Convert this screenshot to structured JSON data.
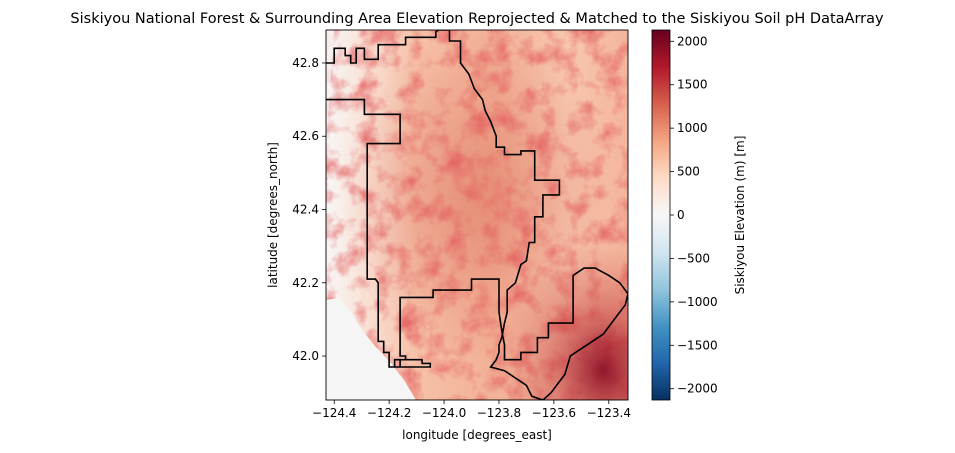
{
  "chart_data": {
    "type": "heatmap",
    "title": "Siskiyou National Forest & Surrounding Area Elevation Reprojected & Matched to the Siskiyou Soil pH DataArray",
    "xlabel": "longitude [degrees_east]",
    "ylabel": "latitude [degrees_north]",
    "xlim": [
      -124.43,
      -123.33
    ],
    "ylim": [
      41.88,
      42.89
    ],
    "x_ticks": [
      {
        "value": -124.4,
        "label": "−124.4"
      },
      {
        "value": -124.2,
        "label": "−124.2"
      },
      {
        "value": -124.0,
        "label": "−124.0"
      },
      {
        "value": -123.8,
        "label": "−123.8"
      },
      {
        "value": -123.6,
        "label": "−123.6"
      },
      {
        "value": -123.4,
        "label": "−123.4"
      }
    ],
    "y_ticks": [
      {
        "value": 42.0,
        "label": "42.0"
      },
      {
        "value": 42.2,
        "label": "42.2"
      },
      {
        "value": 42.4,
        "label": "42.4"
      },
      {
        "value": 42.6,
        "label": "42.6"
      },
      {
        "value": 42.8,
        "label": "42.8"
      }
    ],
    "colorbar": {
      "label": "Siskiyou Elevation (m) [m]",
      "colormap": "RdBu_r",
      "range": [
        -2130,
        2130
      ],
      "ticks": [
        {
          "value": 2000,
          "label": "2000"
        },
        {
          "value": 1500,
          "label": "1500"
        },
        {
          "value": 1000,
          "label": "1000"
        },
        {
          "value": 500,
          "label": "500"
        },
        {
          "value": 0,
          "label": "0"
        },
        {
          "value": -500,
          "label": "−500"
        },
        {
          "value": -1000,
          "label": "−1000"
        },
        {
          "value": -1500,
          "label": "−1500"
        },
        {
          "value": -2000,
          "label": "−2000"
        }
      ],
      "colors": [
        "#053061",
        "#2166ac",
        "#4393c3",
        "#92c5de",
        "#d1e5f0",
        "#f7f7f7",
        "#fddbc7",
        "#f4a582",
        "#d6604d",
        "#b2182b",
        "#67001f"
      ]
    },
    "boundary_color": "#000000",
    "boundary": [
      [
        -124.43,
        42.8
      ],
      [
        -124.4,
        42.8
      ],
      [
        -124.4,
        42.84
      ],
      [
        -124.36,
        42.84
      ],
      [
        -124.36,
        42.82
      ],
      [
        -124.34,
        42.82
      ],
      [
        -124.34,
        42.8
      ],
      [
        -124.32,
        42.8
      ],
      [
        -124.32,
        42.84
      ],
      [
        -124.29,
        42.84
      ],
      [
        -124.29,
        42.81
      ],
      [
        -124.24,
        42.81
      ],
      [
        -124.24,
        42.85
      ],
      [
        -124.14,
        42.85
      ],
      [
        -124.14,
        42.87
      ],
      [
        -124.03,
        42.87
      ],
      [
        -124.03,
        42.885
      ],
      [
        -124.02,
        42.89
      ],
      [
        -123.98,
        42.89
      ],
      [
        -123.98,
        42.86
      ],
      [
        -123.94,
        42.86
      ],
      [
        -123.94,
        42.8
      ],
      [
        -123.91,
        42.77
      ],
      [
        -123.89,
        42.73
      ],
      [
        -123.86,
        42.7
      ],
      [
        -123.85,
        42.67
      ],
      [
        -123.83,
        42.64
      ],
      [
        -123.81,
        42.6
      ],
      [
        -123.81,
        42.57
      ],
      [
        -123.78,
        42.57
      ],
      [
        -123.78,
        42.55
      ],
      [
        -123.72,
        42.55
      ],
      [
        -123.72,
        42.56
      ],
      [
        -123.67,
        42.56
      ],
      [
        -123.67,
        42.48
      ],
      [
        -123.58,
        42.48
      ],
      [
        -123.58,
        42.44
      ],
      [
        -123.64,
        42.44
      ],
      [
        -123.64,
        42.38
      ],
      [
        -123.67,
        42.38
      ],
      [
        -123.67,
        42.31
      ],
      [
        -123.69,
        42.31
      ],
      [
        -123.7,
        42.26
      ],
      [
        -123.72,
        42.25
      ],
      [
        -123.74,
        42.2
      ],
      [
        -123.77,
        42.18
      ],
      [
        -123.77,
        42.12
      ],
      [
        -123.78,
        42.09
      ],
      [
        -123.79,
        42.05
      ],
      [
        -123.8,
        42.03
      ],
      [
        -123.8,
        42.01
      ],
      [
        -123.81,
        41.99
      ],
      [
        -123.83,
        41.97
      ],
      [
        -123.78,
        41.96
      ],
      [
        -123.74,
        41.94
      ],
      [
        -123.7,
        41.92
      ],
      [
        -123.68,
        41.89
      ],
      [
        -123.64,
        41.88
      ],
      [
        -123.61,
        41.9
      ],
      [
        -123.59,
        41.92
      ],
      [
        -123.56,
        41.95
      ],
      [
        -123.54,
        42.0
      ],
      [
        -123.5,
        42.02
      ],
      [
        -123.46,
        42.04
      ],
      [
        -123.42,
        42.06
      ],
      [
        -123.38,
        42.1
      ],
      [
        -123.34,
        42.14
      ],
      [
        -123.33,
        42.17
      ],
      [
        -123.36,
        42.2
      ],
      [
        -123.4,
        42.22
      ],
      [
        -123.45,
        42.24
      ],
      [
        -123.49,
        42.24
      ],
      [
        -123.53,
        42.22
      ],
      [
        -123.53,
        42.09
      ],
      [
        -123.62,
        42.09
      ],
      [
        -123.62,
        42.05
      ],
      [
        -123.66,
        42.05
      ],
      [
        -123.66,
        42.01
      ],
      [
        -123.72,
        42.01
      ],
      [
        -123.72,
        41.99
      ],
      [
        -123.78,
        41.99
      ],
      [
        -123.78,
        42.03
      ],
      [
        -123.79,
        42.07
      ],
      [
        -123.8,
        42.12
      ],
      [
        -123.8,
        42.21
      ],
      [
        -123.9,
        42.21
      ],
      [
        -123.9,
        42.18
      ],
      [
        -124.04,
        42.18
      ],
      [
        -124.04,
        42.16
      ],
      [
        -124.16,
        42.16
      ],
      [
        -124.16,
        42.12
      ],
      [
        -124.16,
        42.08
      ],
      [
        -124.16,
        42.0
      ],
      [
        -124.14,
        42.0
      ],
      [
        -124.14,
        41.99
      ],
      [
        -124.16,
        41.99
      ],
      [
        -124.16,
        41.97
      ],
      [
        -124.18,
        41.97
      ],
      [
        -124.18,
        41.99
      ],
      [
        -124.08,
        41.99
      ],
      [
        -124.08,
        41.98
      ],
      [
        -124.05,
        41.98
      ],
      [
        -124.05,
        41.975
      ],
      [
        -124.05,
        41.97
      ],
      [
        -124.2,
        41.97
      ],
      [
        -124.2,
        42.01
      ],
      [
        -124.22,
        42.01
      ],
      [
        -124.22,
        42.04
      ],
      [
        -124.24,
        42.04
      ],
      [
        -124.24,
        42.09
      ],
      [
        -124.24,
        42.2
      ],
      [
        -124.25,
        42.21
      ],
      [
        -124.28,
        42.21
      ],
      [
        -124.28,
        42.51
      ],
      [
        -124.28,
        42.58
      ],
      [
        -124.16,
        42.58
      ],
      [
        -124.16,
        42.63
      ],
      [
        -124.16,
        42.66
      ],
      [
        -124.29,
        42.66
      ],
      [
        -124.29,
        42.7
      ],
      [
        -124.42,
        42.7
      ],
      [
        -124.43,
        42.7
      ]
    ],
    "elevation_notes": "Terrain from sea level near the coast (west, light gray) rising to ~2000 m in the southeast corner"
  }
}
